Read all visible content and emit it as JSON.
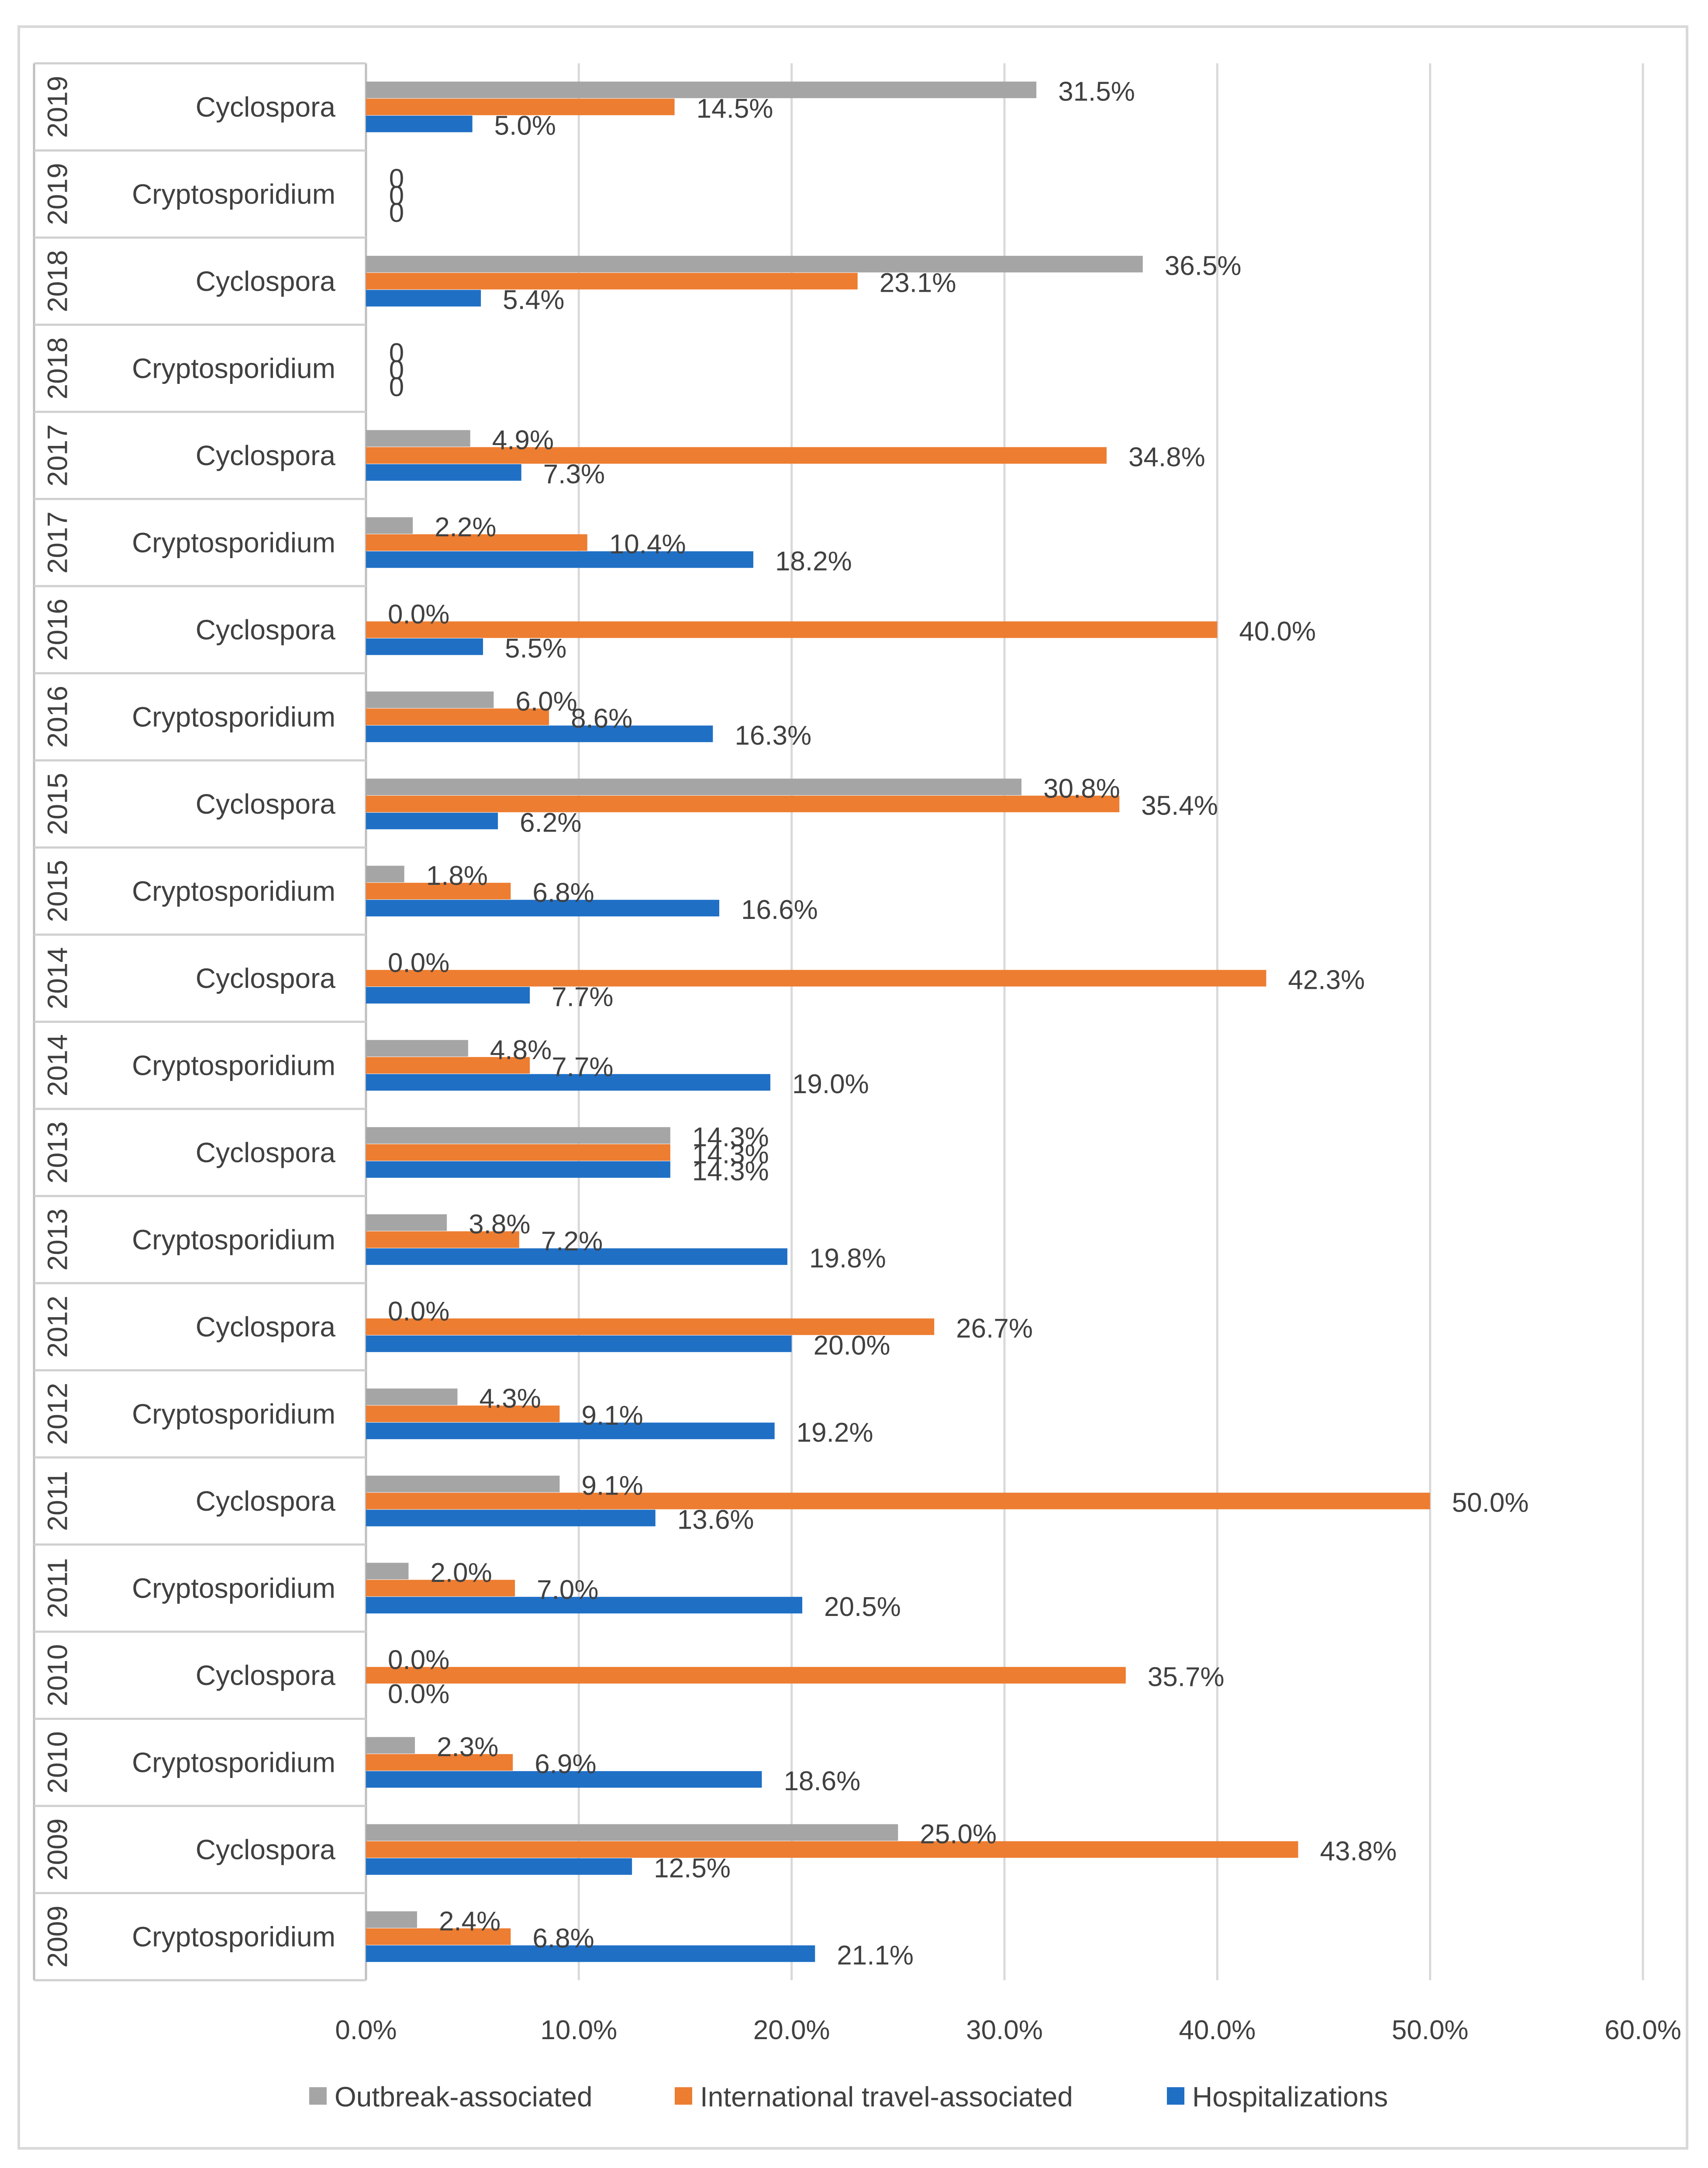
{
  "chart_data": {
    "type": "bar",
    "orientation": "horizontal",
    "title": "",
    "xlabel": "",
    "ylabel": "",
    "xlim": [
      0,
      60
    ],
    "x_ticks": [
      "0.0%",
      "10.0%",
      "20.0%",
      "30.0%",
      "40.0%",
      "50.0%",
      "60.0%"
    ],
    "x_tick_values": [
      0,
      10,
      20,
      30,
      40,
      50,
      60
    ],
    "grid": "vertical",
    "legend_position": "bottom",
    "colors": {
      "Outbreak-associated": "#a5a5a5",
      "International travel-associated": "#ed7d31",
      "Hospitalizations": "#1f6fc5"
    },
    "categories": [
      {
        "year": "2019",
        "pathogen": "Cyclospora"
      },
      {
        "year": "2019",
        "pathogen": "Cryptosporidium"
      },
      {
        "year": "2018",
        "pathogen": "Cyclospora"
      },
      {
        "year": "2018",
        "pathogen": "Cryptosporidium"
      },
      {
        "year": "2017",
        "pathogen": "Cyclospora"
      },
      {
        "year": "2017",
        "pathogen": "Cryptosporidium"
      },
      {
        "year": "2016",
        "pathogen": "Cyclospora"
      },
      {
        "year": "2016",
        "pathogen": "Cryptosporidium"
      },
      {
        "year": "2015",
        "pathogen": "Cyclospora"
      },
      {
        "year": "2015",
        "pathogen": "Cryptosporidium"
      },
      {
        "year": "2014",
        "pathogen": "Cyclospora"
      },
      {
        "year": "2014",
        "pathogen": "Cryptosporidium"
      },
      {
        "year": "2013",
        "pathogen": "Cyclospora"
      },
      {
        "year": "2013",
        "pathogen": "Cryptosporidium"
      },
      {
        "year": "2012",
        "pathogen": "Cyclospora"
      },
      {
        "year": "2012",
        "pathogen": "Cryptosporidium"
      },
      {
        "year": "2011",
        "pathogen": "Cyclospora"
      },
      {
        "year": "2011",
        "pathogen": "Cryptosporidium"
      },
      {
        "year": "2010",
        "pathogen": "Cyclospora"
      },
      {
        "year": "2010",
        "pathogen": "Cryptosporidium"
      },
      {
        "year": "2009",
        "pathogen": "Cyclospora"
      },
      {
        "year": "2009",
        "pathogen": "Cryptosporidium"
      }
    ],
    "series": [
      {
        "name": "Outbreak-associated",
        "values": [
          31.5,
          null,
          36.5,
          null,
          4.9,
          2.2,
          0.0,
          6.0,
          30.8,
          1.8,
          0.0,
          4.8,
          14.3,
          3.8,
          0.0,
          4.3,
          9.1,
          2.0,
          0.0,
          2.3,
          25.0,
          2.4
        ],
        "labels": [
          "31.5%",
          "0",
          "36.5%",
          "0",
          "4.9%",
          "2.2%",
          "0.0%",
          "6.0%",
          "30.8%",
          "1.8%",
          "0.0%",
          "4.8%",
          "14.3%",
          "3.8%",
          "0.0%",
          "4.3%",
          "9.1%",
          "2.0%",
          "0.0%",
          "2.3%",
          "25.0%",
          "2.4%"
        ]
      },
      {
        "name": "International travel-associated",
        "values": [
          14.5,
          null,
          23.1,
          null,
          34.8,
          10.4,
          40.0,
          8.6,
          35.4,
          6.8,
          42.3,
          7.7,
          14.3,
          7.2,
          26.7,
          9.1,
          50.0,
          7.0,
          35.7,
          6.9,
          43.8,
          6.8
        ],
        "labels": [
          "14.5%",
          "0",
          "23.1%",
          "0",
          "34.8%",
          "10.4%",
          "40.0%",
          "8.6%",
          "35.4%",
          "6.8%",
          "42.3%",
          "7.7%",
          "14.3%",
          "7.2%",
          "26.7%",
          "9.1%",
          "50.0%",
          "7.0%",
          "35.7%",
          "6.9%",
          "43.8%",
          "6.8%"
        ]
      },
      {
        "name": "Hospitalizations",
        "values": [
          5.0,
          null,
          5.4,
          null,
          7.3,
          18.2,
          5.5,
          16.3,
          6.2,
          16.6,
          7.7,
          19.0,
          14.3,
          19.8,
          20.0,
          19.2,
          13.6,
          20.5,
          0.0,
          18.6,
          12.5,
          21.1
        ],
        "labels": [
          "5.0%",
          "0",
          "5.4%",
          "0",
          "7.3%",
          "18.2%",
          "5.5%",
          "16.3%",
          "6.2%",
          "16.6%",
          "7.7%",
          "19.0%",
          "14.3%",
          "19.8%",
          "20.0%",
          "19.2%",
          "13.6%",
          "20.5%",
          "0.0%",
          "18.6%",
          "12.5%",
          "21.1%"
        ]
      }
    ]
  }
}
